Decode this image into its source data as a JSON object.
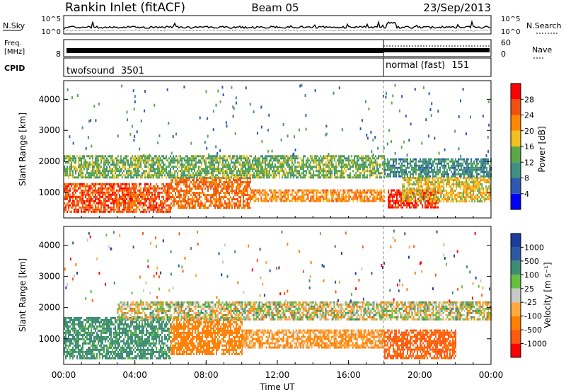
{
  "header": {
    "station": "Rankin Inlet (fitACF)",
    "beam": "Beam 05",
    "date": "23/Sep/2013"
  },
  "noise_panel": {
    "left_label": "N.Sky",
    "right_label": "N.Search",
    "ticks": [
      "10^5",
      "10^0"
    ]
  },
  "freq_panel": {
    "label_line1": "Freq.",
    "label_line2": "[MHz]",
    "left_tick": "8",
    "right_label": "Nave",
    "right_ticks": [
      "60",
      "0"
    ]
  },
  "cpid_panel": {
    "label": "CPID",
    "programs": [
      {
        "name": "twofsound",
        "id": "3501",
        "start_hour": 0
      },
      {
        "name": "normal (fast)",
        "id": "151",
        "start_hour": 18
      }
    ]
  },
  "colors": {
    "power_scale": [
      "#0000ff",
      "#2f58b0",
      "#3f9080",
      "#5aa848",
      "#f0c020",
      "#ff8800",
      "#f05010",
      "#ff0000"
    ],
    "velocity_scale": [
      "#ff0000",
      "#ff5a10",
      "#ff7f00",
      "#ffaa40",
      "#c8c8c8",
      "#66c040",
      "#3d8c74",
      "#2b5aa0",
      "#1d3c9c"
    ],
    "ground_scatter": "#c8c8c8"
  },
  "chart_data": [
    {
      "type": "heatmap",
      "title": "Power",
      "xlabel": "",
      "ylabel": "Slant Range [km]",
      "xlim": [
        "00:00",
        "00:00"
      ],
      "ylim": [
        180,
        4600
      ],
      "yticks": [
        "1000",
        "2000",
        "3000",
        "4000"
      ],
      "colorbar": {
        "label": "Power [dB]",
        "range": [
          0,
          32
        ],
        "ticks": [
          "4",
          "8",
          "12",
          "16",
          "20",
          "24",
          "28"
        ]
      },
      "bands": [
        {
          "from_hour": 0.0,
          "to_hour": 6.0,
          "range_km": [
            400,
            1300
          ],
          "value_db": 26
        },
        {
          "from_hour": 6.0,
          "to_hour": 10.5,
          "range_km": [
            500,
            1500
          ],
          "value_db": 24
        },
        {
          "from_hour": 10.5,
          "to_hour": 18.0,
          "range_km": [
            700,
            1100
          ],
          "value_db": 22
        },
        {
          "from_hour": 18.2,
          "to_hour": 21.0,
          "range_km": [
            500,
            1100
          ],
          "value_db": 28
        },
        {
          "from_hour": 19.0,
          "to_hour": 24.0,
          "range_km": [
            700,
            1500
          ],
          "value_db": 18
        },
        {
          "from_hour": 0.0,
          "to_hour": 18.0,
          "range_km": [
            1500,
            2200
          ],
          "value_db": 14
        },
        {
          "from_hour": 18.0,
          "to_hour": 24.0,
          "range_km": [
            1500,
            2100
          ],
          "value_db": 10
        }
      ]
    },
    {
      "type": "heatmap",
      "title": "Velocity",
      "xlabel": "Time UT",
      "ylabel": "Slant Range [km]",
      "xlim": [
        "00:00",
        "00:00"
      ],
      "ylim": [
        180,
        4600
      ],
      "xticks": [
        "00:00",
        "04:00",
        "08:00",
        "12:00",
        "16:00",
        "20:00",
        "00:00"
      ],
      "yticks": [
        "1000",
        "2000",
        "3000",
        "4000"
      ],
      "colorbar": {
        "label": "Velocity [m s⁻¹]",
        "ticks": [
          "1000",
          "500",
          "100",
          "25",
          "-25",
          "-100",
          "-500",
          "-1000"
        ]
      },
      "bands": [
        {
          "from_hour": 0.0,
          "to_hour": 6.0,
          "range_km": [
            400,
            1700
          ],
          "value_ms": 200
        },
        {
          "from_hour": 6.0,
          "to_hour": 10.0,
          "range_km": [
            500,
            1700
          ],
          "value_ms": -300
        },
        {
          "from_hour": 10.0,
          "to_hour": 18.0,
          "range_km": [
            700,
            1300
          ],
          "value_ms": -150
        },
        {
          "from_hour": 18.0,
          "to_hour": 22.0,
          "range_km": [
            400,
            1300
          ],
          "value_ms": -600
        },
        {
          "from_hour": 3.0,
          "to_hour": 24.0,
          "range_km": [
            1600,
            2200
          ],
          "value_ms": 0
        }
      ]
    }
  ]
}
